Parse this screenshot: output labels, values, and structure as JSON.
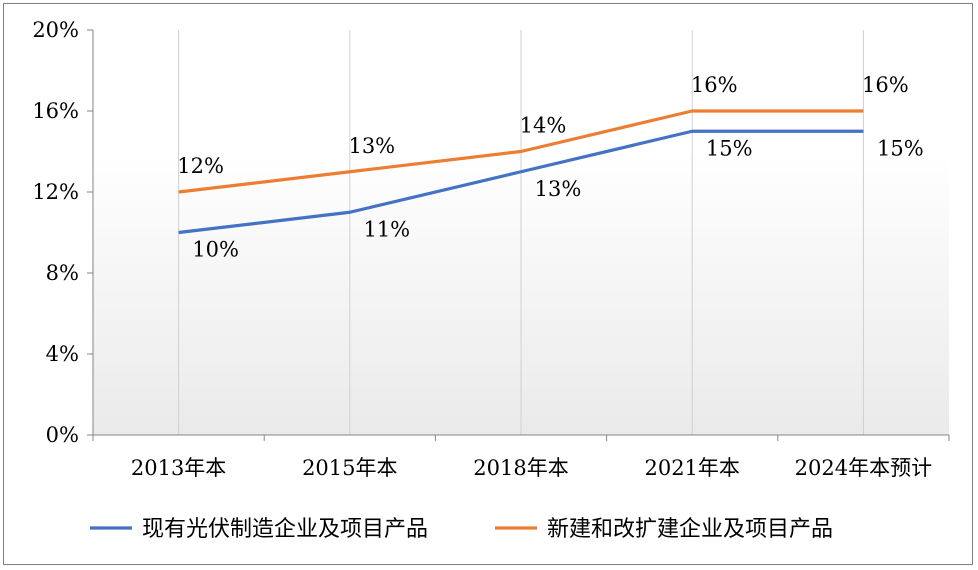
{
  "chart_data": {
    "type": "line",
    "categories": [
      "2013年本",
      "2015年本",
      "2018年本",
      "2021年本",
      "2024年本预计"
    ],
    "series": [
      {
        "name": "现有光伏制造企业及项目产品",
        "values": [
          10,
          11,
          13,
          15,
          15
        ],
        "labels": [
          "10%",
          "11%",
          "13%",
          "15%",
          "15%"
        ],
        "color": "#4472C4"
      },
      {
        "name": "新建和改扩建企业及项目产品",
        "values": [
          12,
          13,
          14,
          16,
          16
        ],
        "labels": [
          "12%",
          "13%",
          "14%",
          "16%",
          "16%"
        ],
        "color": "#ED7D31"
      }
    ],
    "ylim": [
      0,
      20
    ],
    "yticks": [
      0,
      4,
      8,
      12,
      16,
      20
    ],
    "ytick_labels": [
      "0%",
      "4%",
      "8%",
      "12%",
      "16%",
      "20%"
    ],
    "grid": "vertical",
    "legend": "bottom"
  }
}
